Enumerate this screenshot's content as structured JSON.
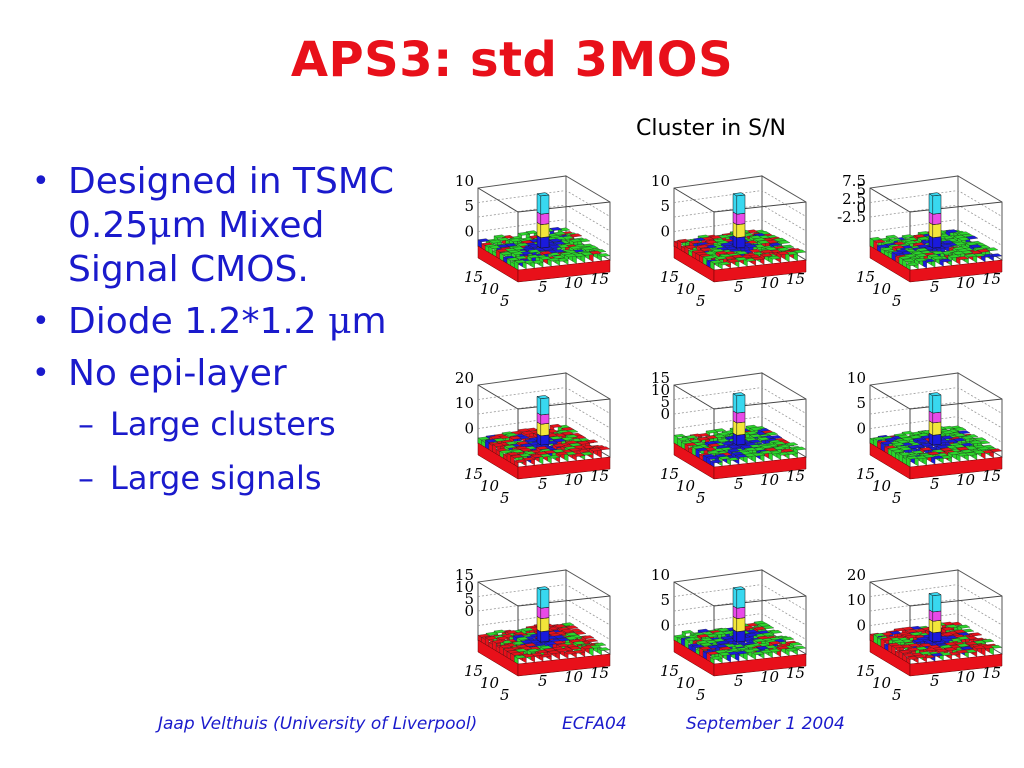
{
  "slide": {
    "title": "APS3: std 3MOS",
    "caption": "Cluster in S/N"
  },
  "bullets": [
    {
      "pre": "Designed in TSMC 0.25",
      "mu": "μ",
      "post": "m Mixed Signal CMOS."
    },
    {
      "pre": "Diode 1.2*1.2 ",
      "mu": "μ",
      "post": "m"
    },
    {
      "pre": "No epi-layer",
      "mu": "",
      "post": ""
    }
  ],
  "sub_bullets": [
    "Large clusters",
    "Large signals"
  ],
  "footer": {
    "author": "Jaap Velthuis (University of Liverpool)",
    "event": "ECFA04",
    "date": "September 1 2004"
  },
  "plots": [
    {
      "zticks": [
        "10",
        "5",
        "0"
      ],
      "peak": 0.9,
      "style": "green"
    },
    {
      "zticks": [
        "10",
        "5",
        "0"
      ],
      "peak": 0.9,
      "style": "mixed"
    },
    {
      "zticks": [
        "7.5",
        "5",
        "2.5",
        "0",
        "-2.5"
      ],
      "peak": 0.9,
      "style": "green"
    },
    {
      "zticks": [
        "20",
        "10",
        "0"
      ],
      "peak": 0.8,
      "style": "red"
    },
    {
      "zticks": [
        "15",
        "10",
        "5",
        "0"
      ],
      "peak": 0.85,
      "style": "green"
    },
    {
      "zticks": [
        "10",
        "5",
        "0"
      ],
      "peak": 0.85,
      "style": "green"
    },
    {
      "zticks": [
        "15",
        "10",
        "5",
        "0"
      ],
      "peak": 0.9,
      "style": "red"
    },
    {
      "zticks": [
        "10",
        "5",
        "0"
      ],
      "peak": 0.9,
      "style": "green"
    },
    {
      "zticks": [
        "20",
        "10",
        "0"
      ],
      "peak": 0.8,
      "style": "red"
    }
  ],
  "axis_ticks": {
    "left": [
      "15",
      "10",
      "5"
    ],
    "right": [
      "5",
      "10",
      "15"
    ]
  },
  "colors": {
    "title": "#e8101a",
    "text": "#1a1acc",
    "bins": [
      "#e8101a",
      "#2ad62a",
      "#1a1adc",
      "#f2e63a",
      "#e84ae8",
      "#38d8f0"
    ]
  }
}
